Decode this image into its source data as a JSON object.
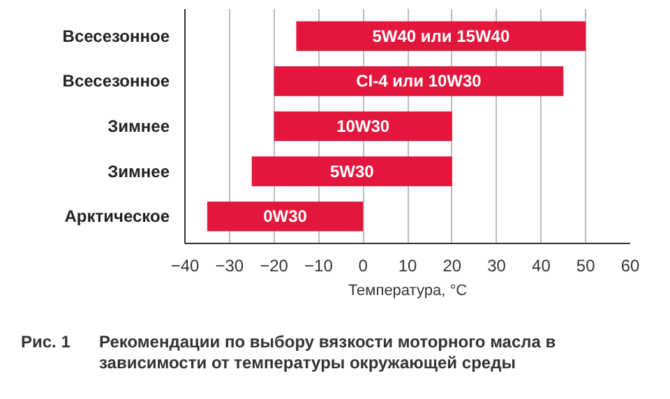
{
  "chart_data": {
    "type": "bar",
    "orientation": "horizontal",
    "categories": [
      "Всесезонное",
      "Всесезонное",
      "Зимнее",
      "Зимнее",
      "Арктическое"
    ],
    "base": [
      -15,
      -20,
      -20,
      -25,
      -35
    ],
    "values": [
      65,
      65,
      40,
      45,
      35
    ],
    "color": "#e3173d",
    "xlim": [
      -40,
      60
    ],
    "xticks": [
      -40,
      -30,
      -20,
      -10,
      0,
      10,
      20,
      30,
      40,
      50,
      60
    ],
    "xlabel": "Температура, °C",
    "grid": "x",
    "annotations": [
      "5W40 или 15W40",
      "CI-4 или 10W30",
      "10W30",
      "5W30",
      "0W30",
      "Рис. 1",
      "Рекомендации по выбору вязкости моторного масла в зависимости от температуры окружающей среды"
    ]
  }
}
